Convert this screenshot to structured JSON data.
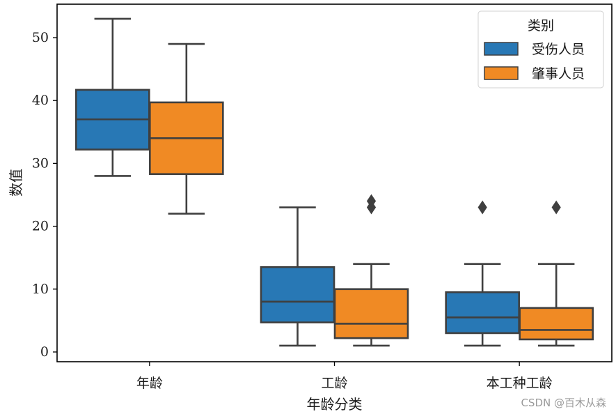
{
  "chart_data": {
    "type": "boxplot",
    "title": "",
    "xlabel": "年龄分类",
    "ylabel": "数值",
    "ylim": [
      -1.5,
      55.5
    ],
    "yticks": [
      0,
      10,
      20,
      30,
      40,
      50
    ],
    "grid": false,
    "categories": [
      "年龄",
      "工龄",
      "本工种工龄"
    ],
    "legend": {
      "title": "类别",
      "position": "top-right",
      "entries": [
        "受伤人员",
        "肇事人员"
      ]
    },
    "series": [
      {
        "name": "受伤人员",
        "color": "#2878b5",
        "boxes": [
          {
            "whisker_low": 28,
            "q1": 32.2,
            "median": 37,
            "q3": 41.7,
            "whisker_high": 53,
            "outliers": []
          },
          {
            "whisker_low": 1,
            "q1": 4.7,
            "median": 8,
            "q3": 13.5,
            "whisker_high": 23,
            "outliers": []
          },
          {
            "whisker_low": 1,
            "q1": 3,
            "median": 5.5,
            "q3": 9.5,
            "whisker_high": 14,
            "outliers": [
              23
            ]
          }
        ]
      },
      {
        "name": "肇事人员",
        "color": "#f08a24",
        "boxes": [
          {
            "whisker_low": 22,
            "q1": 28.3,
            "median": 34,
            "q3": 39.7,
            "whisker_high": 49,
            "outliers": []
          },
          {
            "whisker_low": 1,
            "q1": 2.2,
            "median": 4.5,
            "q3": 10,
            "whisker_high": 14,
            "outliers": [
              23,
              24
            ]
          },
          {
            "whisker_low": 1,
            "q1": 2,
            "median": 3.5,
            "q3": 7,
            "whisker_high": 14,
            "outliers": [
              23
            ]
          }
        ]
      }
    ]
  },
  "watermark": "CSDN @百木从森",
  "colors": {
    "edge": "#3f3f3f",
    "axis": "#000000"
  }
}
